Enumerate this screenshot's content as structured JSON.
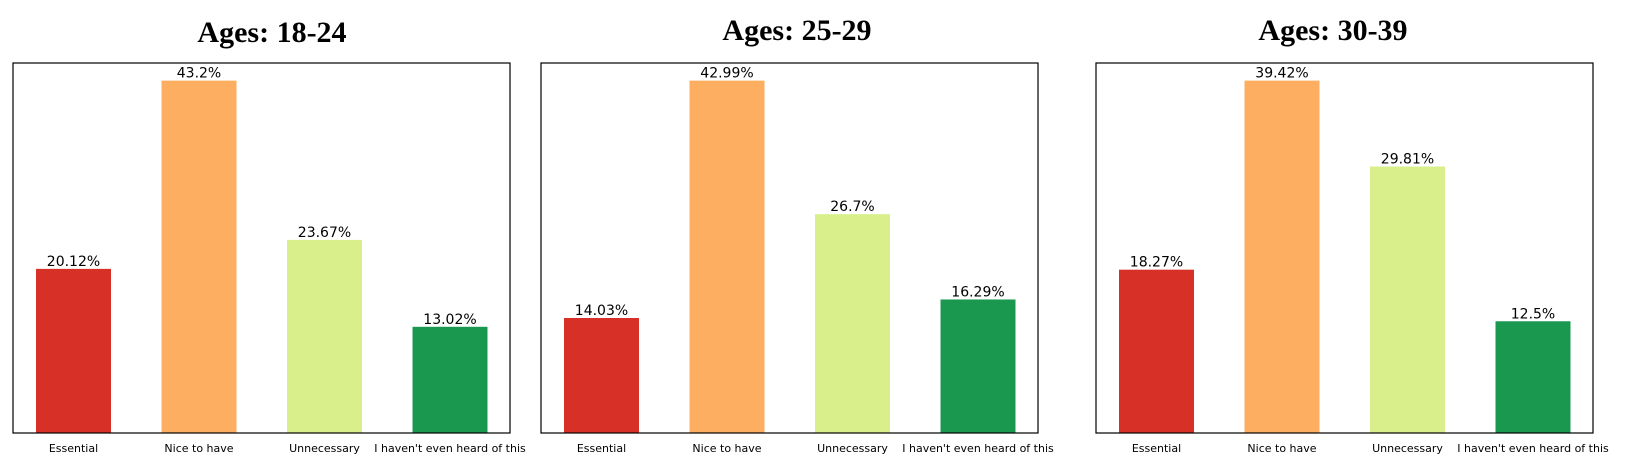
{
  "colors": [
    "#d73027",
    "#fdae61",
    "#d9ef8b",
    "#1a9850"
  ],
  "chart_data": [
    {
      "type": "bar",
      "title": "Ages: 18-24",
      "categories": [
        "Essential",
        "Nice to have",
        "Unnecessary",
        "I haven't even heard of this"
      ],
      "values": [
        20.12,
        43.2,
        23.67,
        13.02
      ],
      "value_labels": [
        "20.12%",
        "43.2%",
        "23.67%",
        "13.02%"
      ],
      "ylim": [
        0,
        45.36
      ],
      "grid": false
    },
    {
      "type": "bar",
      "title": "Ages: 25-29",
      "categories": [
        "Essential",
        "Nice to have",
        "Unnecessary",
        "I haven't even heard of this"
      ],
      "values": [
        14.03,
        42.99,
        26.7,
        16.29
      ],
      "value_labels": [
        "14.03%",
        "42.99%",
        "26.7%",
        "16.29%"
      ],
      "ylim": [
        0,
        45.14
      ],
      "grid": false
    },
    {
      "type": "bar",
      "title": "Ages: 30-39",
      "categories": [
        "Essential",
        "Nice to have",
        "Unnecessary",
        "I haven't even heard of this"
      ],
      "values": [
        18.27,
        39.42,
        29.81,
        12.5
      ],
      "value_labels": [
        "18.27%",
        "39.42%",
        "29.81%",
        "12.5%"
      ],
      "ylim": [
        0,
        41.39
      ],
      "grid": false
    }
  ]
}
